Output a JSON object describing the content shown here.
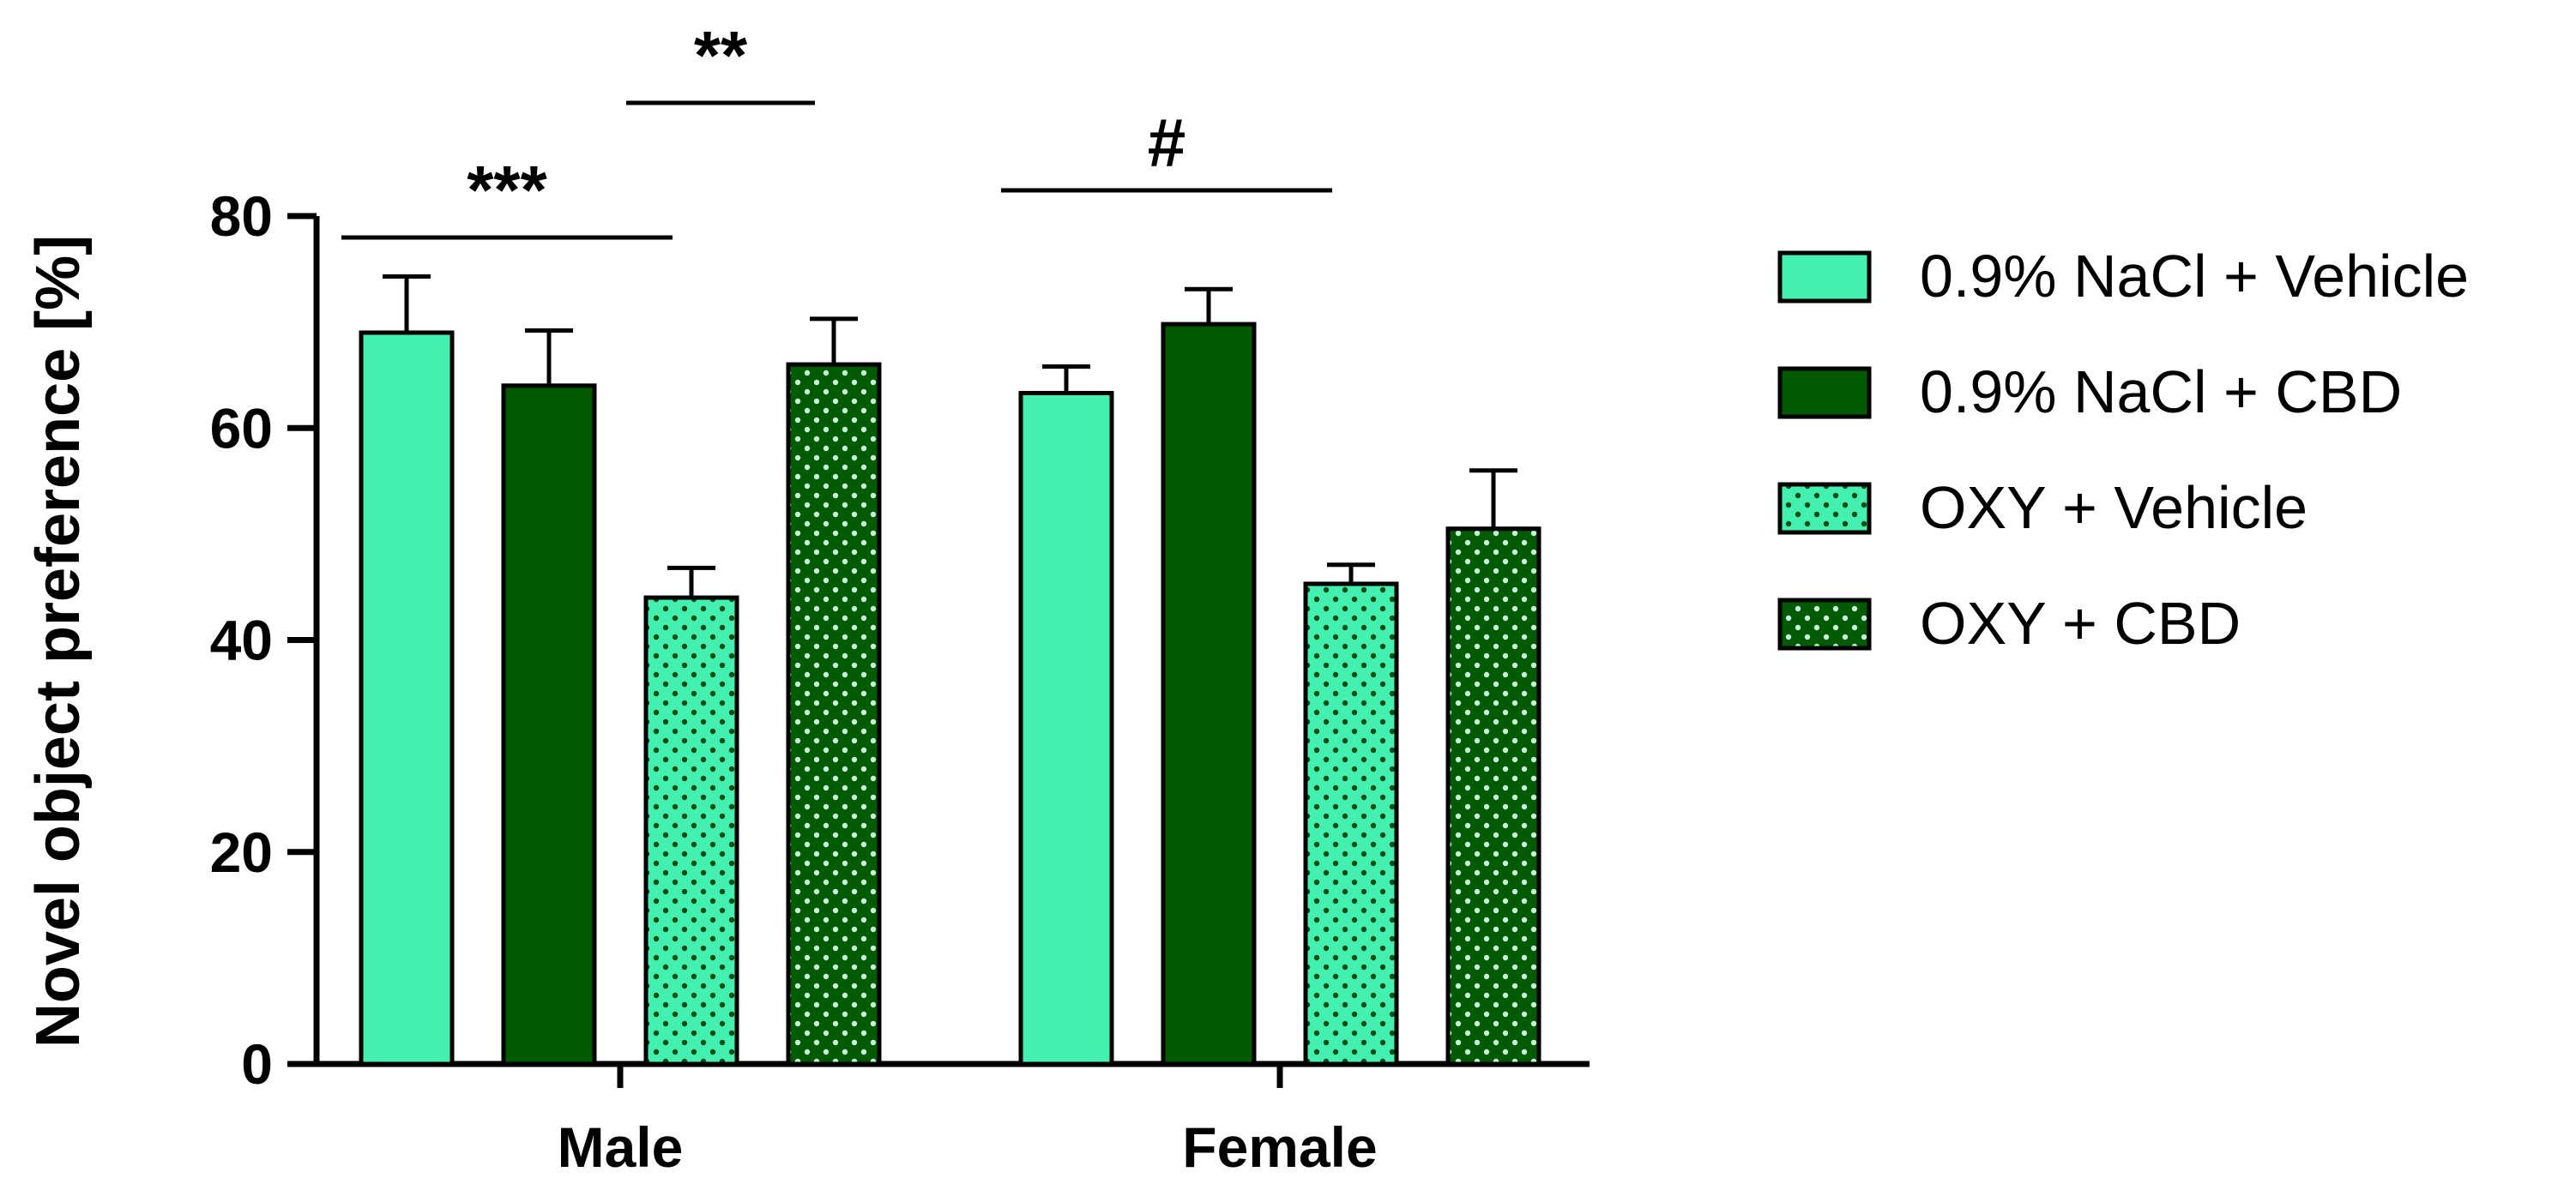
{
  "chart_data": {
    "type": "bar",
    "title": "",
    "xlabel": "",
    "ylabel": "Novel object preference [%]",
    "ylim": [
      0,
      80
    ],
    "yticks": [
      0,
      20,
      40,
      60,
      80
    ],
    "categories": [
      "Male",
      "Female"
    ],
    "series": [
      {
        "name": "0.9% NaCl + Vehicle",
        "color": "#44f0b0",
        "pattern": "solid",
        "values": [
          69,
          63.3
        ],
        "errors": [
          5.3,
          2.5
        ]
      },
      {
        "name": "0.9% NaCl + CBD",
        "color": "#005a00",
        "pattern": "solid",
        "values": [
          64,
          69.8
        ],
        "errors": [
          5.2,
          3.3
        ]
      },
      {
        "name": "OXY + Vehicle",
        "color": "#44f0b0",
        "pattern": "dots",
        "values": [
          44,
          45.3
        ],
        "errors": [
          2.8,
          1.8
        ]
      },
      {
        "name": "OXY + CBD",
        "color": "#005a00",
        "pattern": "dots",
        "values": [
          66,
          50.5
        ],
        "errors": [
          4.3,
          5.5
        ]
      }
    ],
    "significance": [
      {
        "label": "***",
        "category": "Male",
        "from_series": 0,
        "to_series": 2
      },
      {
        "label": "**",
        "category": "Male",
        "from_series": 2,
        "to_series": 3
      },
      {
        "label": "#",
        "category": "Female",
        "from_series": 0,
        "to_series": 2
      }
    ],
    "legend_position": "right"
  }
}
